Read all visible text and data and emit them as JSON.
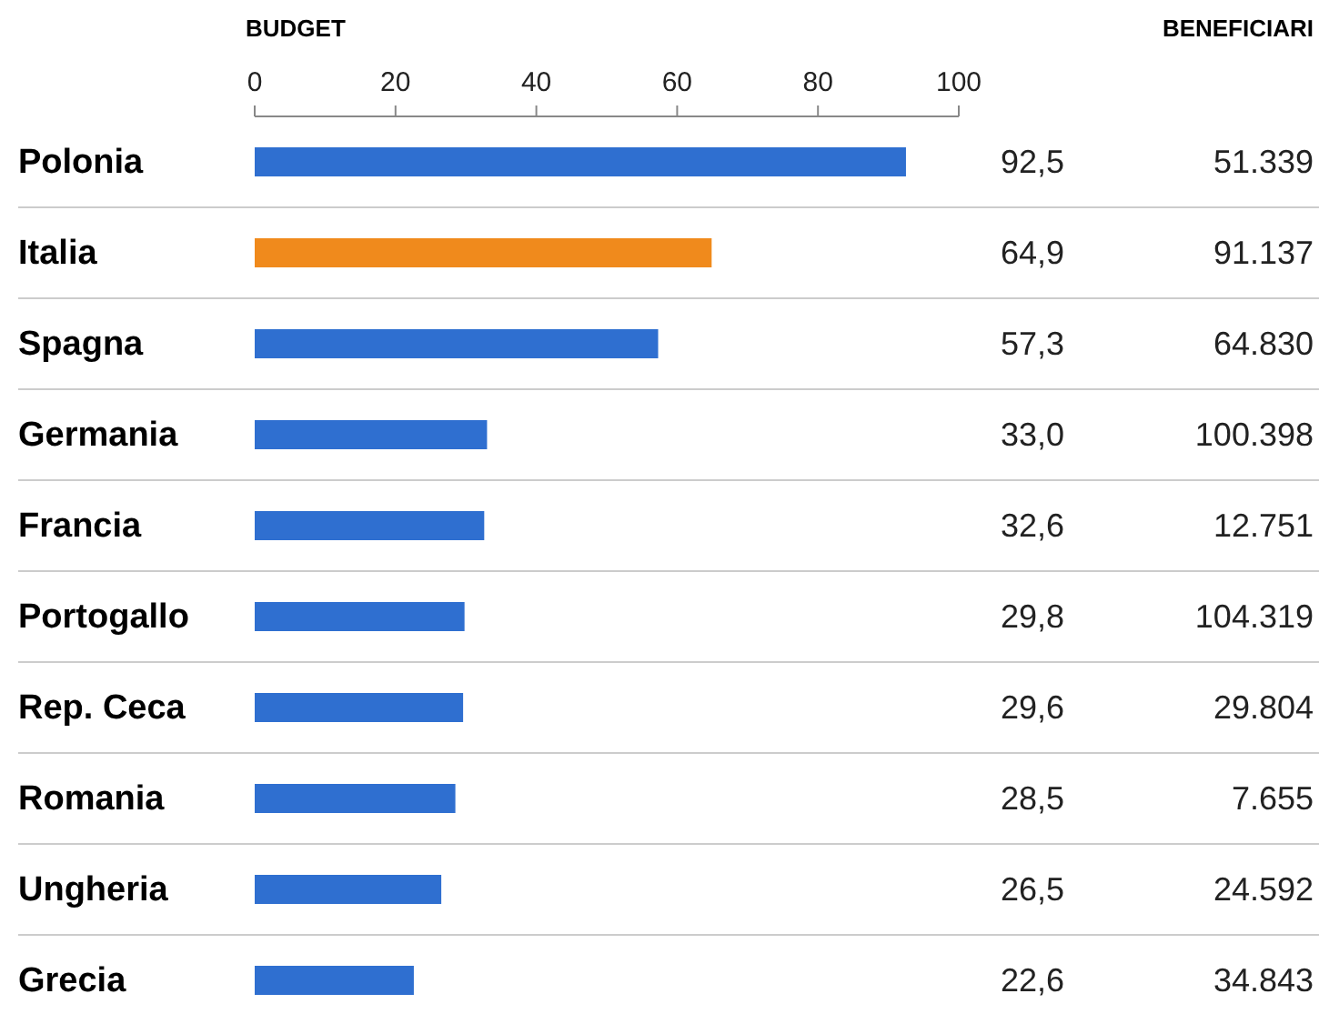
{
  "chart_data": {
    "type": "bar",
    "orientation": "horizontal",
    "xlabel": "BUDGET",
    "categories": [
      "Polonia",
      "Italia",
      "Spagna",
      "Germania",
      "Francia",
      "Portogallo",
      "Rep. Ceca",
      "Romania",
      "Ungheria",
      "Grecia"
    ],
    "values": [
      92.5,
      64.9,
      57.3,
      33.0,
      32.6,
      29.8,
      29.6,
      28.5,
      26.5,
      22.6
    ],
    "value_labels": [
      "92,5",
      "64,9",
      "57,3",
      "33,0",
      "32,6",
      "29,8",
      "29,6",
      "28,5",
      "26,5",
      "22,6"
    ],
    "colors": [
      "#2f6fd0",
      "#f08a1c",
      "#2f6fd0",
      "#2f6fd0",
      "#2f6fd0",
      "#2f6fd0",
      "#2f6fd0",
      "#2f6fd0",
      "#2f6fd0",
      "#2f6fd0"
    ],
    "xlim": [
      0,
      100
    ],
    "xticks": [
      0,
      20,
      40,
      60,
      80,
      100
    ],
    "annotations": [
      "BENEFICIARI",
      "51.339",
      "91.137",
      "64.830",
      "100.398",
      "12.751",
      "104.319",
      "29.804",
      "7.655",
      "24.592",
      "34.843"
    ]
  }
}
